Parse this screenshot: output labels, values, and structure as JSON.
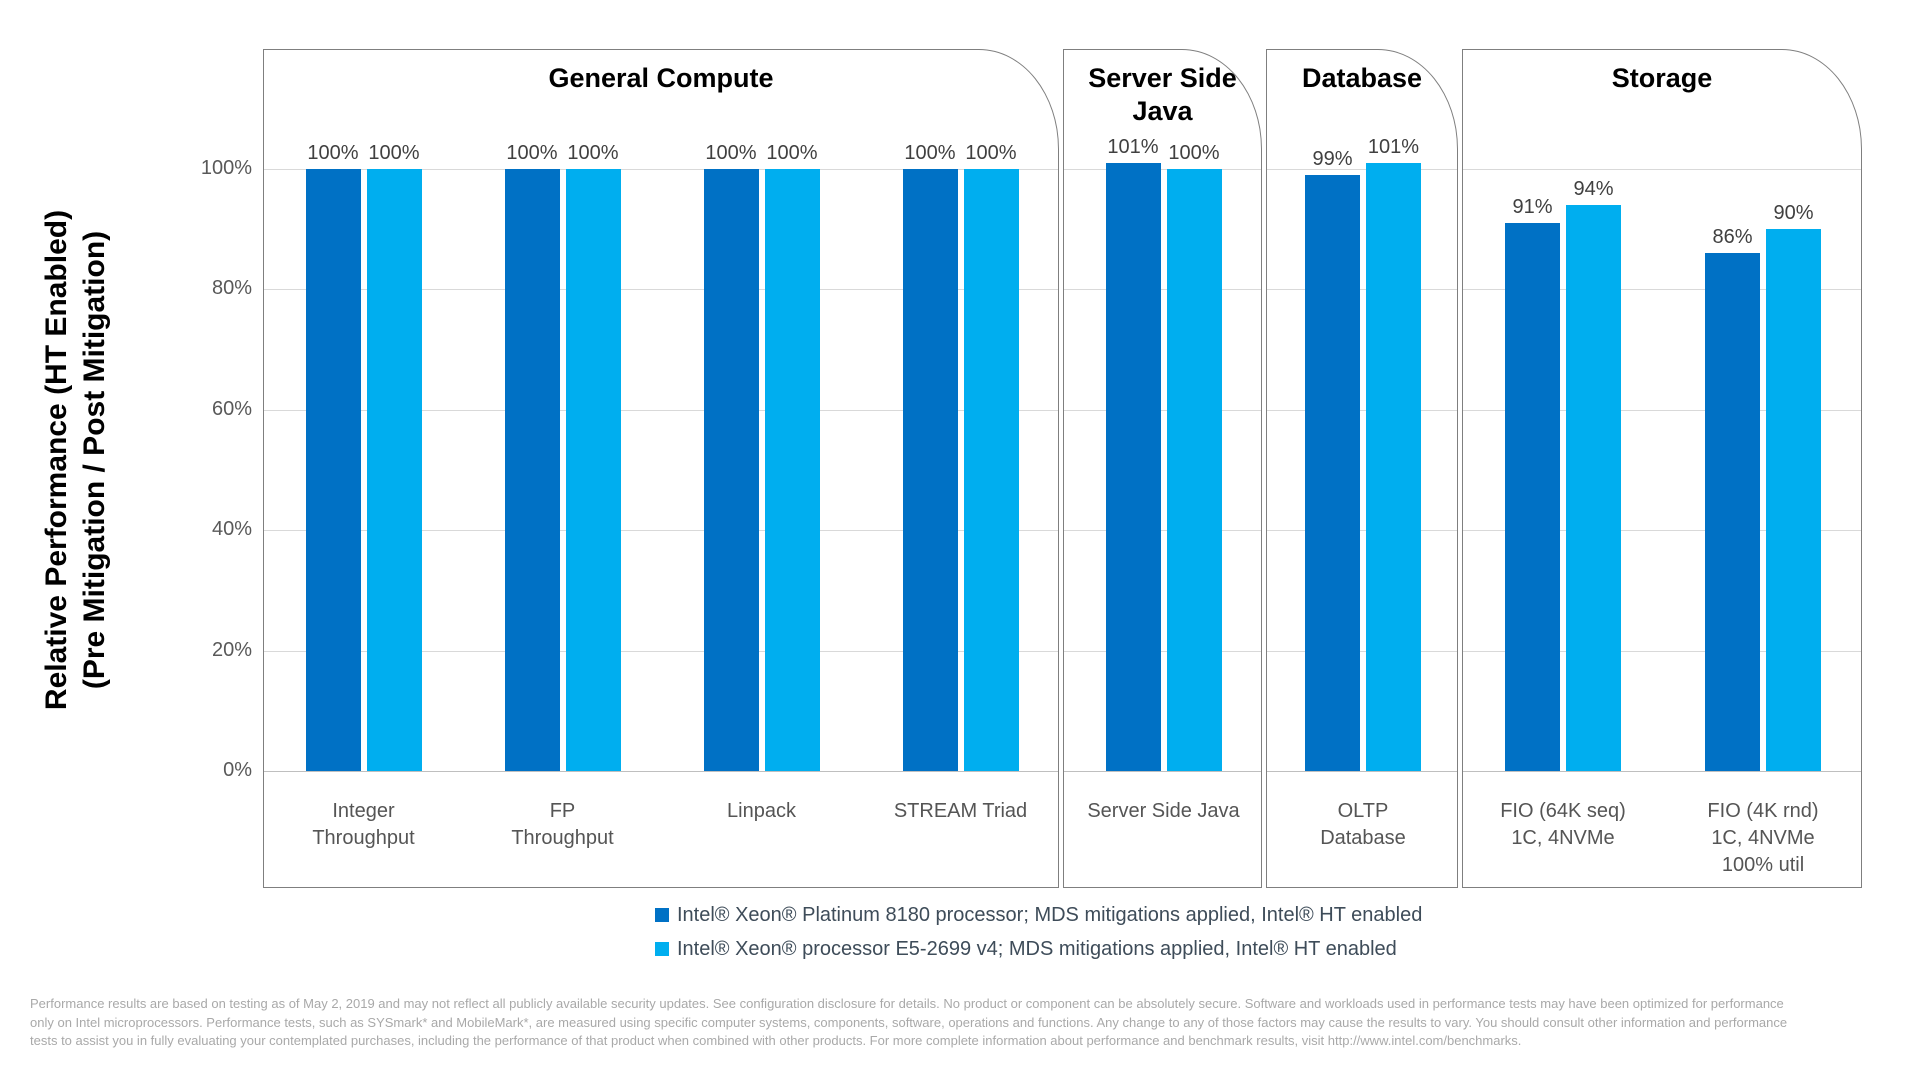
{
  "y_axis": {
    "title_line1": "Relative Performance (HT Enabled)",
    "title_line2": "(Pre Mitigation / Post Mitigation)"
  },
  "chart_data": {
    "type": "bar",
    "ylabel": "Relative Performance (HT Enabled) (Pre Mitigation / Post Mitigation)",
    "unit": "%",
    "ylim": [
      0,
      120
    ],
    "grid": true,
    "yticks": [
      0,
      20,
      40,
      60,
      80,
      100
    ],
    "ytick_labels": [
      "0%",
      "20%",
      "40%",
      "60%",
      "80%",
      "100%"
    ],
    "legend_position": "bottom",
    "colors": {
      "series1": "#0071c5",
      "series2": "#00aeef",
      "gridline": "#d9d9d9",
      "axisline": "#bfbfbf",
      "panel_border": "#7f7f7f",
      "value_label": "#404040"
    },
    "series": [
      {
        "name": "Intel® Xeon® Platinum 8180 processor; MDS mitigations applied, Intel® HT enabled",
        "color": "#0071c5"
      },
      {
        "name": "Intel® Xeon® processor E5-2699 v4; MDS mitigations applied, Intel® HT enabled",
        "color": "#00aeef"
      }
    ],
    "panels": [
      {
        "title": "General Compute",
        "groups": [
          {
            "label_lines": [
              "Integer",
              "Throughput"
            ],
            "values": [
              100,
              100
            ],
            "value_labels": [
              "100%",
              "100%"
            ]
          },
          {
            "label_lines": [
              "FP",
              "Throughput"
            ],
            "values": [
              100,
              100
            ],
            "value_labels": [
              "100%",
              "100%"
            ]
          },
          {
            "label_lines": [
              "Linpack"
            ],
            "values": [
              100,
              100
            ],
            "value_labels": [
              "100%",
              "100%"
            ]
          },
          {
            "label_lines": [
              "STREAM Triad"
            ],
            "values": [
              100,
              100
            ],
            "value_labels": [
              "100%",
              "100%"
            ]
          }
        ]
      },
      {
        "title": "Server Side Java",
        "groups": [
          {
            "label_lines": [
              "Server Side Java"
            ],
            "values": [
              101,
              100
            ],
            "value_labels": [
              "101%",
              "100%"
            ]
          }
        ]
      },
      {
        "title": "Database",
        "groups": [
          {
            "label_lines": [
              "OLTP",
              "Database"
            ],
            "values": [
              99,
              101
            ],
            "value_labels": [
              "99%",
              "101%"
            ]
          }
        ]
      },
      {
        "title": "Storage",
        "groups": [
          {
            "label_lines": [
              "FIO (64K seq)",
              "1C, 4NVMe"
            ],
            "values": [
              91,
              94
            ],
            "value_labels": [
              "91%",
              "94%"
            ]
          },
          {
            "label_lines": [
              "FIO (4K rnd)",
              "1C, 4NVMe",
              "100% util"
            ],
            "values": [
              86,
              90
            ],
            "value_labels": [
              "86%",
              "90%"
            ]
          }
        ]
      }
    ]
  },
  "footer": {
    "lines": [
      "Performance results are based on testing as of May 2, 2019 and may not reflect all publicly available security updates. See configuration disclosure for details. No product or component can be absolutely secure. Software and workloads used in performance tests may have been optimized for performance",
      "only on Intel microprocessors. Performance tests, such as SYSmark* and MobileMark*, are measured using specific computer systems, components, software, operations and functions.  Any change to any of those factors may cause the results to vary.  You should consult other information and performance",
      "tests to assist you in fully evaluating your contemplated purchases, including the performance of that product when combined with other products. For more complete information about performance and benchmark results, visit http://www.intel.com/benchmarks."
    ]
  }
}
